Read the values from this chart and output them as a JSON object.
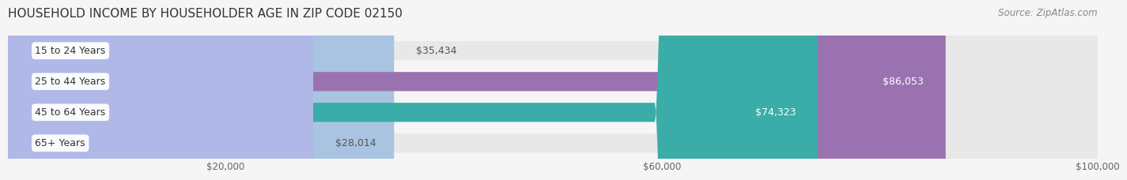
{
  "title": "HOUSEHOLD INCOME BY HOUSEHOLDER AGE IN ZIP CODE 02150",
  "source": "Source: ZipAtlas.com",
  "categories": [
    "15 to 24 Years",
    "25 to 44 Years",
    "45 to 64 Years",
    "65+ Years"
  ],
  "values": [
    35434,
    86053,
    74323,
    28014
  ],
  "bar_colors": [
    "#a8c4e0",
    "#9b72b0",
    "#3aada8",
    "#b0b8e8"
  ],
  "label_colors": [
    "#555555",
    "#ffffff",
    "#ffffff",
    "#555555"
  ],
  "xlim": [
    0,
    100000
  ],
  "xticks": [
    20000,
    60000,
    100000
  ],
  "xtick_labels": [
    "$20,000",
    "$60,000",
    "$100,000"
  ],
  "background_color": "#f5f5f5",
  "bar_background_color": "#e8e8e8",
  "title_fontsize": 11,
  "source_fontsize": 8.5,
  "label_fontsize": 9,
  "category_fontsize": 9
}
